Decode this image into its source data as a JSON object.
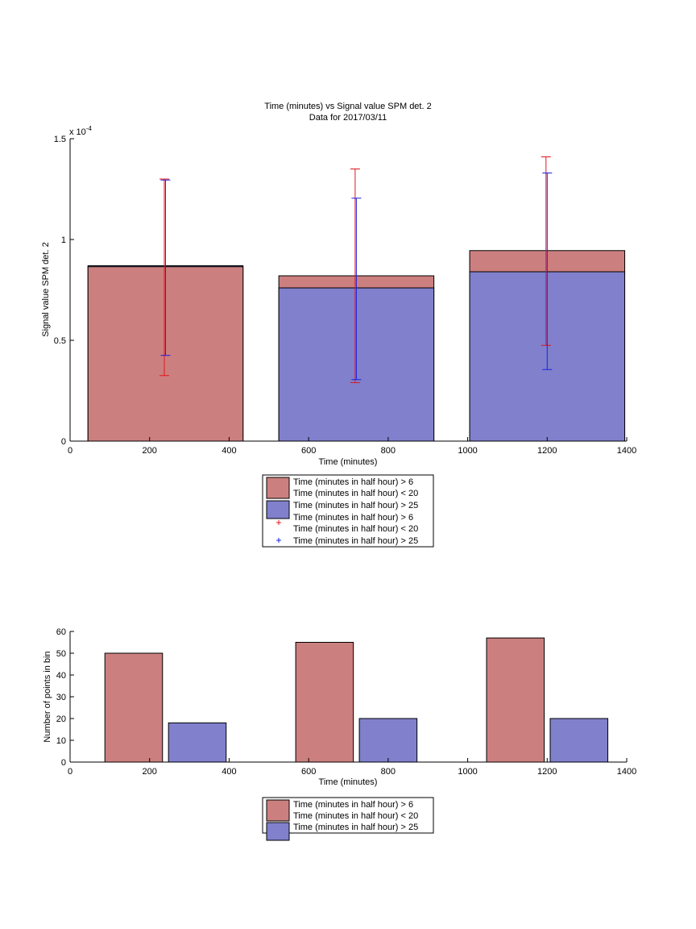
{
  "colors": {
    "red": "#cc7f7f",
    "blue": "#8080cc",
    "red_err": "#e0161f",
    "blue_err": "#1a1fe0"
  },
  "chart_data": [
    {
      "type": "bar",
      "title": "Time (minutes) vs Signal value SPM det. 2",
      "subtitle": "Data for 2017/03/11",
      "xlabel": "Time (minutes)",
      "ylabel": "Signal value SPM det. 2",
      "y_exponent_label": "x 10",
      "y_exponent_power": "-4",
      "xlim": [
        0,
        1400
      ],
      "ylim": [
        0,
        1.5
      ],
      "x_ticks": [
        0,
        200,
        400,
        600,
        800,
        1000,
        1200,
        1400
      ],
      "y_ticks": [
        0,
        0.5,
        1,
        1.5
      ],
      "y_tick_labels": [
        "0",
        "0.5",
        "1",
        "1.5"
      ],
      "bar_centers": [
        240,
        720,
        1200
      ],
      "bar_width": 390,
      "series": [
        {
          "name": "Time (minutes in half hour) > 6 Time (minutes in half hour) < 20",
          "values": [
            0.865,
            0.82,
            0.945
          ]
        },
        {
          "name": "Time (minutes in half hour) > 25",
          "values": [
            0.87,
            0.76,
            0.84
          ]
        }
      ],
      "errorbars": [
        {
          "name": "Time (minutes in half hour) > 6 Time (minutes in half hour) < 20",
          "x": [
            237,
            717,
            1197
          ],
          "low": [
            0.325,
            0.29,
            0.475
          ],
          "high": [
            1.3,
            1.35,
            1.41
          ]
        },
        {
          "name": "Time (minutes in half hour) > 25",
          "x": [
            240,
            720,
            1200
          ],
          "low": [
            0.425,
            0.305,
            0.355
          ],
          "high": [
            1.295,
            1.205,
            1.33
          ]
        }
      ],
      "legend": {
        "entries": [
          {
            "label_lines": [
              "Time (minutes in half hour) > 6",
              "Time (minutes in half hour) < 20"
            ],
            "kind": "patch",
            "color": "#cc7f7f"
          },
          {
            "label_lines": [
              "Time (minutes in half hour) > 25"
            ],
            "kind": "patch",
            "color": "#8080cc"
          },
          {
            "label_lines": [
              "Time (minutes in half hour) > 6",
              "Time (minutes in half hour) < 20"
            ],
            "kind": "marker",
            "color": "#e0161f"
          },
          {
            "label_lines": [
              "Time (minutes in half hour) > 25"
            ],
            "kind": "marker",
            "color": "#1a1fe0"
          }
        ],
        "placement": "below"
      },
      "grid": false
    },
    {
      "type": "bar",
      "xlabel": "Time (minutes)",
      "ylabel": "Number of points in bin",
      "xlim": [
        0,
        1400
      ],
      "ylim": [
        0,
        60
      ],
      "x_ticks": [
        0,
        200,
        400,
        600,
        800,
        1000,
        1200,
        1400
      ],
      "y_ticks": [
        0,
        10,
        20,
        30,
        40,
        50,
        60
      ],
      "series": [
        {
          "name": "Time (minutes in half hour) > 6 Time (minutes in half hour) < 20",
          "centers": [
            160,
            640,
            1120
          ],
          "values": [
            50,
            55,
            57
          ]
        },
        {
          "name": "Time (minutes in half hour) > 25",
          "centers": [
            320,
            800,
            1280
          ],
          "values": [
            18,
            20,
            20
          ]
        }
      ],
      "bar_width": 145,
      "legend": {
        "entries": [
          {
            "label_lines": [
              "Time (minutes in half hour) > 6",
              "Time (minutes in half hour) < 20"
            ],
            "kind": "patch",
            "color": "#cc7f7f"
          },
          {
            "label_lines": [
              "Time (minutes in half hour) > 25"
            ],
            "kind": "patch",
            "color": "#8080cc"
          }
        ],
        "placement": "below"
      },
      "grid": false
    }
  ]
}
